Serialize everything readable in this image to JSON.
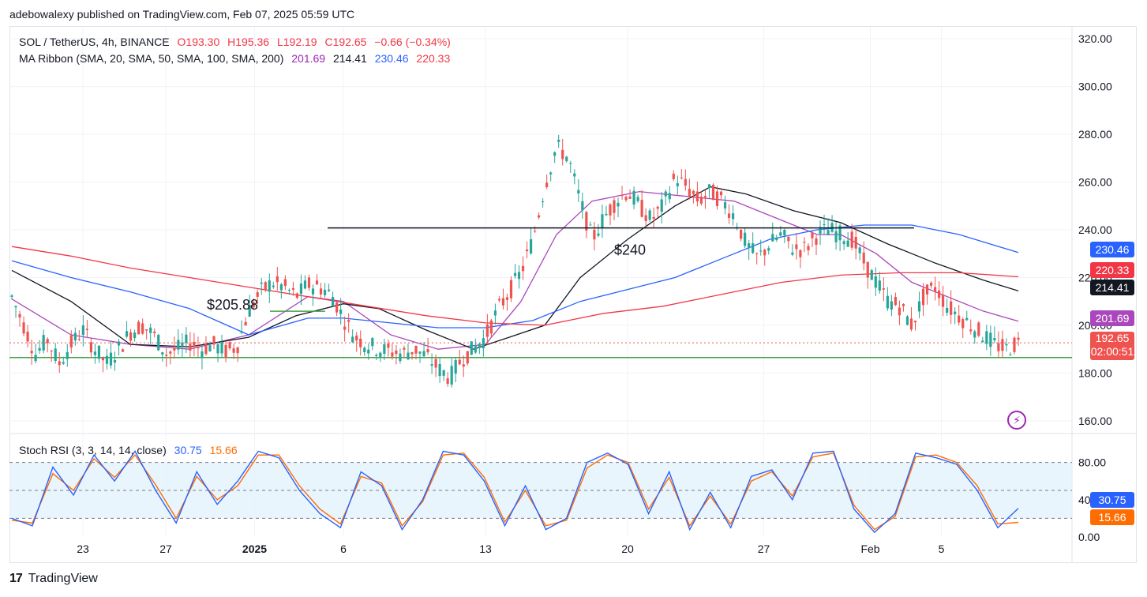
{
  "header": {
    "text": "adebowalexy published on TradingView.com, Feb 07, 2025 05:59 UTC"
  },
  "legend_main": {
    "symbol": "SOL / TetherUS, 4h, BINANCE",
    "open": "O193.30",
    "high": "H195.36",
    "low": "L192.19",
    "close": "C192.65",
    "change": "−0.66 (−0.34%)"
  },
  "legend_ma": {
    "label": "MA Ribbon (SMA, 20, SMA, 50, SMA, 100, SMA, 200)",
    "v20": "201.69",
    "v50": "214.41",
    "v100": "230.46",
    "v200": "220.33"
  },
  "legend_rsi": {
    "label": "Stoch RSI (3, 3, 14, 14, close)",
    "k": "30.75",
    "d": "15.66"
  },
  "badges": {
    "ma100": "230.46",
    "ma200": "220.33",
    "ma50": "214.41",
    "ma20": "201.69",
    "price": "192.65",
    "countdown": "02:00:51",
    "rsi_k": "30.75",
    "rsi_d": "15.66"
  },
  "colors": {
    "up": "#26a69a",
    "down": "#ef5350",
    "ma20": "#ab47bc",
    "ma50": "#131722",
    "ma100": "#2962ff",
    "ma200": "#f23645",
    "rsi_k": "#2962ff",
    "rsi_d": "#ff6d00",
    "support": "#43a047"
  },
  "footer": {
    "brand": "TradingView"
  },
  "chart_data": {
    "type": "line",
    "title": "SOL / TetherUS, 4h, BINANCE",
    "price_axis": {
      "ticks": [
        "320.00",
        "300.00",
        "280.00",
        "260.00",
        "240.00",
        "220.00",
        "200.00",
        "180.00",
        "160.00"
      ],
      "ylim": [
        155,
        325
      ]
    },
    "rsi_axis": {
      "ticks": [
        "80.00",
        "40.00",
        "0.00"
      ],
      "ylim": [
        0,
        100
      ],
      "band": [
        20,
        80
      ]
    },
    "x_ticks": [
      "23",
      "27",
      "2025",
      "6",
      "13",
      "20",
      "27",
      "Feb",
      "5"
    ],
    "annotations": [
      {
        "text": "$205.88",
        "price": 205.88
      },
      {
        "text": "$240",
        "price": 240.8
      }
    ],
    "support_level": 186.5,
    "current_price": 192.65,
    "series": [
      {
        "name": "SOL / TetherUS",
        "points": [
          [
            0,
            212
          ],
          [
            2,
            200
          ],
          [
            4,
            188
          ],
          [
            6,
            194
          ],
          [
            8,
            184
          ],
          [
            10,
            192
          ],
          [
            12,
            198
          ],
          [
            14,
            190
          ],
          [
            16,
            184
          ],
          [
            18,
            190
          ],
          [
            20,
            197
          ],
          [
            22,
            200
          ],
          [
            24,
            196
          ],
          [
            26,
            188
          ],
          [
            28,
            190
          ],
          [
            30,
            193
          ],
          [
            32,
            190
          ],
          [
            34,
            192
          ],
          [
            36,
            189
          ],
          [
            38,
            191
          ],
          [
            40,
            206
          ],
          [
            42,
            214
          ],
          [
            44,
            218
          ],
          [
            46,
            216
          ],
          [
            48,
            212
          ],
          [
            50,
            217
          ],
          [
            52,
            216
          ],
          [
            54,
            213
          ],
          [
            56,
            203
          ],
          [
            58,
            195
          ],
          [
            60,
            192
          ],
          [
            62,
            190
          ],
          [
            64,
            189
          ],
          [
            66,
            188
          ],
          [
            68,
            190
          ],
          [
            70,
            187
          ],
          [
            72,
            182
          ],
          [
            74,
            178
          ],
          [
            76,
            186
          ],
          [
            78,
            190
          ],
          [
            80,
            195
          ],
          [
            82,
            206
          ],
          [
            84,
            214
          ],
          [
            86,
            222
          ],
          [
            88,
            236
          ],
          [
            90,
            258
          ],
          [
            92,
            275
          ],
          [
            94,
            270
          ],
          [
            96,
            252
          ],
          [
            98,
            236
          ],
          [
            100,
            245
          ],
          [
            102,
            252
          ],
          [
            104,
            256
          ],
          [
            106,
            250
          ],
          [
            108,
            244
          ],
          [
            110,
            250
          ],
          [
            112,
            262
          ],
          [
            114,
            258
          ],
          [
            116,
            252
          ],
          [
            118,
            256
          ],
          [
            120,
            252
          ],
          [
            122,
            246
          ],
          [
            124,
            234
          ],
          [
            126,
            228
          ],
          [
            128,
            234
          ],
          [
            130,
            238
          ],
          [
            132,
            232
          ],
          [
            134,
            232
          ],
          [
            136,
            238
          ],
          [
            138,
            240
          ],
          [
            140,
            238
          ],
          [
            142,
            236
          ],
          [
            144,
            226
          ],
          [
            146,
            218
          ],
          [
            148,
            210
          ],
          [
            150,
            208
          ],
          [
            152,
            200
          ],
          [
            154,
            212
          ],
          [
            156,
            216
          ],
          [
            158,
            208
          ],
          [
            160,
            204
          ],
          [
            162,
            200
          ],
          [
            164,
            196
          ],
          [
            166,
            192
          ],
          [
            168,
            190
          ],
          [
            170,
            192.65
          ]
        ]
      },
      {
        "name": "SMA 20",
        "points": [
          [
            0,
            211
          ],
          [
            10,
            196
          ],
          [
            20,
            192
          ],
          [
            30,
            190
          ],
          [
            40,
            196
          ],
          [
            50,
            212
          ],
          [
            56,
            210
          ],
          [
            64,
            196
          ],
          [
            72,
            190
          ],
          [
            80,
            192
          ],
          [
            86,
            210
          ],
          [
            92,
            238
          ],
          [
            98,
            252
          ],
          [
            106,
            256
          ],
          [
            114,
            254
          ],
          [
            122,
            252
          ],
          [
            130,
            244
          ],
          [
            136,
            238
          ],
          [
            140,
            238
          ],
          [
            146,
            230
          ],
          [
            152,
            218
          ],
          [
            158,
            212
          ],
          [
            164,
            206
          ],
          [
            170,
            201.69
          ]
        ]
      },
      {
        "name": "SMA 50",
        "points": [
          [
            0,
            223
          ],
          [
            10,
            210
          ],
          [
            20,
            192
          ],
          [
            30,
            191
          ],
          [
            40,
            195
          ],
          [
            48,
            204
          ],
          [
            56,
            209
          ],
          [
            62,
            207
          ],
          [
            70,
            198
          ],
          [
            78,
            190
          ],
          [
            84,
            195
          ],
          [
            90,
            200
          ],
          [
            96,
            220
          ],
          [
            104,
            236
          ],
          [
            112,
            250
          ],
          [
            118,
            258
          ],
          [
            124,
            255
          ],
          [
            132,
            248
          ],
          [
            140,
            243
          ],
          [
            148,
            234
          ],
          [
            156,
            226
          ],
          [
            164,
            219
          ],
          [
            170,
            214.41
          ]
        ]
      },
      {
        "name": "SMA 100",
        "points": [
          [
            0,
            227
          ],
          [
            10,
            220
          ],
          [
            20,
            214
          ],
          [
            30,
            207
          ],
          [
            40,
            196
          ],
          [
            50,
            203
          ],
          [
            56,
            203
          ],
          [
            64,
            201
          ],
          [
            72,
            199
          ],
          [
            80,
            199
          ],
          [
            88,
            202
          ],
          [
            96,
            210
          ],
          [
            104,
            215
          ],
          [
            112,
            220
          ],
          [
            120,
            228
          ],
          [
            128,
            236
          ],
          [
            136,
            240
          ],
          [
            144,
            242
          ],
          [
            152,
            242
          ],
          [
            160,
            238
          ],
          [
            170,
            230.46
          ]
        ]
      },
      {
        "name": "SMA 200",
        "points": [
          [
            0,
            233
          ],
          [
            10,
            229
          ],
          [
            20,
            224
          ],
          [
            30,
            220
          ],
          [
            40,
            216
          ],
          [
            50,
            212
          ],
          [
            60,
            208
          ],
          [
            70,
            204
          ],
          [
            80,
            201
          ],
          [
            90,
            200
          ],
          [
            100,
            205
          ],
          [
            110,
            208
          ],
          [
            120,
            213
          ],
          [
            130,
            218
          ],
          [
            140,
            221
          ],
          [
            150,
            222
          ],
          [
            160,
            222
          ],
          [
            170,
            220.33
          ]
        ]
      }
    ],
    "rsi_series": [
      {
        "name": "K",
        "values": [
          20,
          12,
          75,
          45,
          88,
          60,
          92,
          50,
          15,
          70,
          35,
          60,
          92,
          85,
          50,
          25,
          10,
          70,
          55,
          8,
          40,
          92,
          88,
          60,
          12,
          55,
          8,
          20,
          80,
          90,
          78,
          25,
          70,
          8,
          48,
          10,
          65,
          72,
          40,
          90,
          92,
          30,
          5,
          25,
          90,
          85,
          78,
          50,
          10,
          30.75
        ]
      },
      {
        "name": "D",
        "values": [
          18,
          15,
          68,
          50,
          84,
          64,
          88,
          56,
          20,
          65,
          40,
          55,
          88,
          88,
          55,
          30,
          14,
          65,
          58,
          12,
          38,
          88,
          90,
          64,
          16,
          50,
          12,
          18,
          74,
          88,
          80,
          30,
          64,
          12,
          44,
          14,
          60,
          70,
          44,
          86,
          90,
          34,
          8,
          22,
          86,
          88,
          80,
          55,
          14,
          15.66
        ]
      }
    ]
  }
}
